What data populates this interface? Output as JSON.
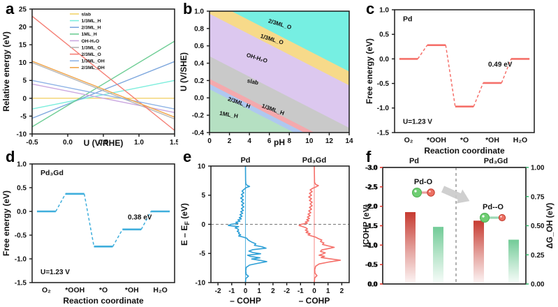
{
  "figure": {
    "panel_letters": [
      "a",
      "b",
      "c",
      "d",
      "e",
      "f"
    ]
  },
  "chart_data": [
    {
      "panel": "a",
      "type": "line",
      "letter": "a",
      "xlabel": "U (V/RHE)",
      "ylabel": "Relative energy (eV)",
      "xlim": [
        -0.5,
        1.5
      ],
      "ylim": [
        -10,
        25
      ],
      "xticks": [
        "-0.5",
        "0.0",
        "0.5",
        "1.0",
        "1.5"
      ],
      "yticks": [
        "25",
        "20",
        "15",
        "10",
        "5",
        "0",
        "-5",
        "-10"
      ],
      "legend_position": "upper center-right, inside",
      "series": [
        {
          "name": "slab",
          "color": "#F2D36B",
          "x": [
            -0.5,
            1.5
          ],
          "y": [
            0,
            0
          ]
        },
        {
          "name": "1/3ML_H",
          "color": "#7DEEDD",
          "x": [
            -0.5,
            1.5
          ],
          "y": [
            -3,
            5
          ]
        },
        {
          "name": "2/3ML_H",
          "color": "#7FA8DE",
          "x": [
            -0.5,
            1.5
          ],
          "y": [
            -5.6,
            10.3
          ]
        },
        {
          "name": "1ML_H",
          "color": "#6FCE96",
          "x": [
            -0.5,
            1.5
          ],
          "y": [
            -8,
            16
          ]
        },
        {
          "name": "OH-H₂O",
          "color": "#CBA8E0",
          "x": [
            -0.5,
            1.5
          ],
          "y": [
            4,
            -4
          ]
        },
        {
          "name": "1/3ML_O",
          "color": "#B5B5B5",
          "x": [
            -0.5,
            1.5
          ],
          "y": [
            10,
            -5.8
          ]
        },
        {
          "name": "2/3ML_O",
          "color": "#F57F75",
          "x": [
            -0.5,
            1.5
          ],
          "y": [
            23,
            -9
          ]
        },
        {
          "name": "1/3ML_OH",
          "color": "#8FB4E6",
          "x": [
            -0.5,
            1.5
          ],
          "y": [
            5,
            -3
          ]
        },
        {
          "name": "2/3ML_OH",
          "color": "#F0A54B",
          "x": [
            -0.5,
            1.5
          ],
          "y": [
            10.4,
            -5.3
          ]
        }
      ]
    },
    {
      "panel": "b",
      "type": "phase-diagram",
      "letter": "b",
      "xlabel": "pH",
      "ylabel": "U (V/SHE)",
      "xlim": [
        0,
        14
      ],
      "ylim": [
        -0.4,
        1.0
      ],
      "xticks": [
        "0",
        "2",
        "4",
        "6",
        "8",
        "10",
        "12",
        "14"
      ],
      "yticks": [
        "1.0",
        "0.8",
        "0.6",
        "0.4",
        "0.2",
        "0.0",
        "-0.2",
        "-0.4"
      ],
      "boundary_slope_V_per_pH": -0.059,
      "boundary_intercepts_at_pH0": [
        1.13,
        0.97,
        0.48,
        0.22,
        0.16,
        0.1
      ],
      "regions": [
        {
          "name": "2/3ML_O",
          "color": "#76EFE2"
        },
        {
          "name": "1/3ML_O",
          "color": "#F7DA8A"
        },
        {
          "name": "OH-H₂O",
          "color": "#DCC8EF"
        },
        {
          "name": "slab",
          "color": "#C9C9C9"
        },
        {
          "name": "1/3ML_H",
          "color": "#F4A9AD"
        },
        {
          "name": "2/3ML_H",
          "color": "#AFC8F0"
        },
        {
          "name": "1ML_H",
          "color": "#B5E0C2"
        }
      ],
      "region_labels": [
        {
          "text": "2/3ML_O",
          "ph": 7.0,
          "u": 0.83,
          "rot": 17
        },
        {
          "text": "1/3ML_O",
          "ph": 6.2,
          "u": 0.655,
          "rot": 17
        },
        {
          "text": "OH-H₂O",
          "ph": 4.7,
          "u": 0.44,
          "rot": 17
        },
        {
          "text": "slab",
          "ph": 4.3,
          "u": 0.165,
          "rot": 12
        },
        {
          "text": "1/3ML_H",
          "ph": 6.3,
          "u": -0.155,
          "rot": 20
        },
        {
          "text": "2/3ML_H",
          "ph": 2.9,
          "u": -0.075,
          "rot": 20
        },
        {
          "text": "1ML_H",
          "ph": 1.9,
          "u": -0.215,
          "rot": 10
        }
      ]
    },
    {
      "panel": "c",
      "type": "step",
      "letter": "c",
      "system": "Pd",
      "color": "#F5706A",
      "xlabel": "Reaction coordinate",
      "ylabel": "Free energy (eV)",
      "ylim": [
        -1.5,
        1.0
      ],
      "yticks": [
        "1.0",
        "0.5",
        "0.0",
        "-0.5",
        "-1.0",
        "-1.5"
      ],
      "categories": [
        "O₂",
        "*OOH",
        "*O",
        "*OH",
        "H₂O"
      ],
      "levels": [
        0.0,
        0.28,
        -0.97,
        -0.49,
        0.0
      ],
      "annotation": "0.49 eV",
      "annotation_x": 3.28,
      "annotation_y": -0.16,
      "potential": "U=1.23 V"
    },
    {
      "panel": "d",
      "type": "step",
      "letter": "d",
      "system": "Pd₃Gd",
      "color": "#3FAEDC",
      "xlabel": "Reaction coordinate",
      "ylabel": "Free energy (eV)",
      "ylim": [
        -1.5,
        1.0
      ],
      "yticks": [
        "1.0",
        "0.5",
        "0.0",
        "-0.5",
        "-1.0",
        "-1.5"
      ],
      "categories": [
        "O₂",
        "*OOH",
        "*O",
        "*OH",
        "H₂O"
      ],
      "levels": [
        0.0,
        0.37,
        -0.74,
        -0.38,
        0.0
      ],
      "annotation": "0.38 eV",
      "annotation_x": 3.28,
      "annotation_y": -0.17,
      "potential": "U=1.23 V"
    },
    {
      "panel": "e",
      "type": "cohp",
      "letter": "e",
      "ylabel_parts": {
        "pre": "E – E",
        "sub": "F",
        "post": " (eV)"
      },
      "xlabel": "– COHP",
      "ylim": [
        -10,
        10
      ],
      "yticks": [
        "10",
        "5",
        "0",
        "-5",
        "-10"
      ],
      "xticks": [
        "-2",
        "-1",
        "0",
        "1",
        "2"
      ],
      "fermi_line_y": 0,
      "subpanels": [
        {
          "name": "Pd",
          "color": "#2D9FD6",
          "points": [
            [
              -10,
              0
            ],
            [
              -9.3,
              0.02
            ],
            [
              -8.9,
              0.22
            ],
            [
              -8.6,
              0.05
            ],
            [
              -8,
              0.02
            ],
            [
              -7.4,
              0.05
            ],
            [
              -7,
              0.3
            ],
            [
              -6.7,
              0.9
            ],
            [
              -6.4,
              1.55
            ],
            [
              -6.15,
              1.0
            ],
            [
              -5.95,
              0.45
            ],
            [
              -5.75,
              1.05
            ],
            [
              -5.5,
              0.35
            ],
            [
              -5.3,
              0.15
            ],
            [
              -5.05,
              1.1
            ],
            [
              -4.85,
              0.55
            ],
            [
              -4.6,
              0.25
            ],
            [
              -4.35,
              0.55
            ],
            [
              -4.1,
              1.5
            ],
            [
              -3.85,
              1.2
            ],
            [
              -3.6,
              0.65
            ],
            [
              -3.35,
              0.75
            ],
            [
              -3.1,
              0.5
            ],
            [
              -2.85,
              0.3
            ],
            [
              -2.6,
              0.15
            ],
            [
              -2.4,
              0.1
            ],
            [
              -2.2,
              -0.15
            ],
            [
              -2,
              -0.5
            ],
            [
              -1.8,
              -0.35
            ],
            [
              -1.6,
              -0.5
            ],
            [
              -1.4,
              -0.45
            ],
            [
              -1.2,
              -0.6
            ],
            [
              -1,
              -0.5
            ],
            [
              -0.8,
              -0.55
            ],
            [
              -0.6,
              -0.75
            ],
            [
              -0.4,
              -0.5
            ],
            [
              -0.2,
              -1.25
            ],
            [
              0,
              -1.05
            ],
            [
              0.15,
              -0.55
            ],
            [
              0.35,
              -0.7
            ],
            [
              0.55,
              -0.4
            ],
            [
              0.75,
              -0.55
            ],
            [
              0.95,
              -0.3
            ],
            [
              1.15,
              -0.45
            ],
            [
              1.4,
              -0.25
            ],
            [
              1.65,
              -0.4
            ],
            [
              1.9,
              -0.2
            ],
            [
              2.15,
              -0.35
            ],
            [
              2.4,
              -0.15
            ],
            [
              2.7,
              -0.3
            ],
            [
              3,
              -0.12
            ],
            [
              3.3,
              -0.28
            ],
            [
              3.6,
              -0.12
            ],
            [
              3.9,
              -0.3
            ],
            [
              4.2,
              -0.15
            ],
            [
              4.5,
              -0.35
            ],
            [
              4.8,
              -0.15
            ],
            [
              5.1,
              -0.3
            ],
            [
              5.4,
              -0.12
            ],
            [
              5.7,
              -0.25
            ],
            [
              6,
              -0.1
            ],
            [
              6.3,
              0.05
            ],
            [
              6.5,
              0.3
            ],
            [
              6.7,
              0.12
            ],
            [
              6.9,
              0.03
            ],
            [
              7.5,
              0.01
            ],
            [
              10,
              0
            ]
          ]
        },
        {
          "name": "Pd₃Gd",
          "color": "#F5716B",
          "points": [
            [
              -10,
              0
            ],
            [
              -9.2,
              0.03
            ],
            [
              -8.8,
              0.2
            ],
            [
              -8.4,
              0.05
            ],
            [
              -7.8,
              0.03
            ],
            [
              -7.2,
              0.1
            ],
            [
              -6.8,
              0.35
            ],
            [
              -6.45,
              1.1
            ],
            [
              -6.15,
              1.9
            ],
            [
              -5.9,
              1.1
            ],
            [
              -5.7,
              0.5
            ],
            [
              -5.5,
              0.75
            ],
            [
              -5.3,
              0.35
            ],
            [
              -5.1,
              0.6
            ],
            [
              -4.9,
              0.8
            ],
            [
              -4.65,
              0.45
            ],
            [
              -4.4,
              0.55
            ],
            [
              -4.15,
              1.05
            ],
            [
              -3.95,
              1.45
            ],
            [
              -3.7,
              1.0
            ],
            [
              -3.45,
              0.6
            ],
            [
              -3.2,
              0.7
            ],
            [
              -2.95,
              0.45
            ],
            [
              -2.7,
              0.55
            ],
            [
              -2.45,
              0.3
            ],
            [
              -2.2,
              0.1
            ],
            [
              -2,
              -0.2
            ],
            [
              -1.8,
              -0.45
            ],
            [
              -1.6,
              -0.3
            ],
            [
              -1.4,
              -0.6
            ],
            [
              -1.2,
              -0.45
            ],
            [
              -1,
              -0.65
            ],
            [
              -0.8,
              -0.5
            ],
            [
              -0.6,
              -0.6
            ],
            [
              -0.4,
              -0.85
            ],
            [
              -0.2,
              -1.1
            ],
            [
              0,
              -0.95
            ],
            [
              0.2,
              -0.5
            ],
            [
              0.4,
              -0.65
            ],
            [
              0.6,
              -0.4
            ],
            [
              0.8,
              -0.55
            ],
            [
              1,
              -0.35
            ],
            [
              1.25,
              -0.5
            ],
            [
              1.5,
              -0.3
            ],
            [
              1.75,
              -0.45
            ],
            [
              2,
              -0.25
            ],
            [
              2.3,
              -0.4
            ],
            [
              2.6,
              -0.2
            ],
            [
              2.9,
              -0.35
            ],
            [
              3.2,
              -0.15
            ],
            [
              3.5,
              -0.3
            ],
            [
              3.8,
              -0.15
            ],
            [
              4.1,
              -0.35
            ],
            [
              4.4,
              -0.2
            ],
            [
              4.7,
              -0.4
            ],
            [
              5,
              -0.2
            ],
            [
              5.3,
              -0.35
            ],
            [
              5.6,
              -0.15
            ],
            [
              5.9,
              -0.3
            ],
            [
              6.2,
              -0.1
            ],
            [
              6.45,
              0.15
            ],
            [
              6.65,
              0.3
            ],
            [
              6.85,
              0.1
            ],
            [
              7.2,
              0.02
            ],
            [
              10,
              0
            ]
          ]
        }
      ]
    },
    {
      "panel": "f",
      "type": "bar-dual-axis",
      "letter": "f",
      "left_axis": {
        "label": "ICOHP (eV)",
        "color": "#E0372E",
        "ticks": [
          "-3.0",
          "-2.5",
          "-2.0",
          "-1.5",
          "-1.0",
          "-0.5",
          "0.0"
        ],
        "range_bottom_to_top": [
          0,
          -3
        ]
      },
      "right_axis": {
        "label": "ΔG_OH (eV)",
        "color": "#28B463",
        "ticks": [
          "1.00",
          "0.75",
          "0.50",
          "0.25",
          "0.00"
        ],
        "range_bottom_to_top": [
          0,
          1
        ]
      },
      "groups": [
        {
          "name": "Pd",
          "icohp": -1.85,
          "dg_oh": 0.49,
          "molecule_label": "Pd-O",
          "bond": "short"
        },
        {
          "name": "Pd₃Gd",
          "icohp": -1.63,
          "dg_oh": 0.38,
          "molecule_label": "Pd--O",
          "bond": "long"
        }
      ],
      "bar_colors": {
        "icohp_top": "#C63A30",
        "dg_oh_top": "#72CB97"
      },
      "molecule_colors": {
        "pd_atom": "#6FCE73",
        "o_atom": "#EC7063",
        "bond_short": "#E9A0A0",
        "bond_long": "#9BD8B4"
      },
      "divider": "dashed vertical between groups",
      "arrow": "gray arrow from Pd group to Pd3Gd group"
    }
  ]
}
